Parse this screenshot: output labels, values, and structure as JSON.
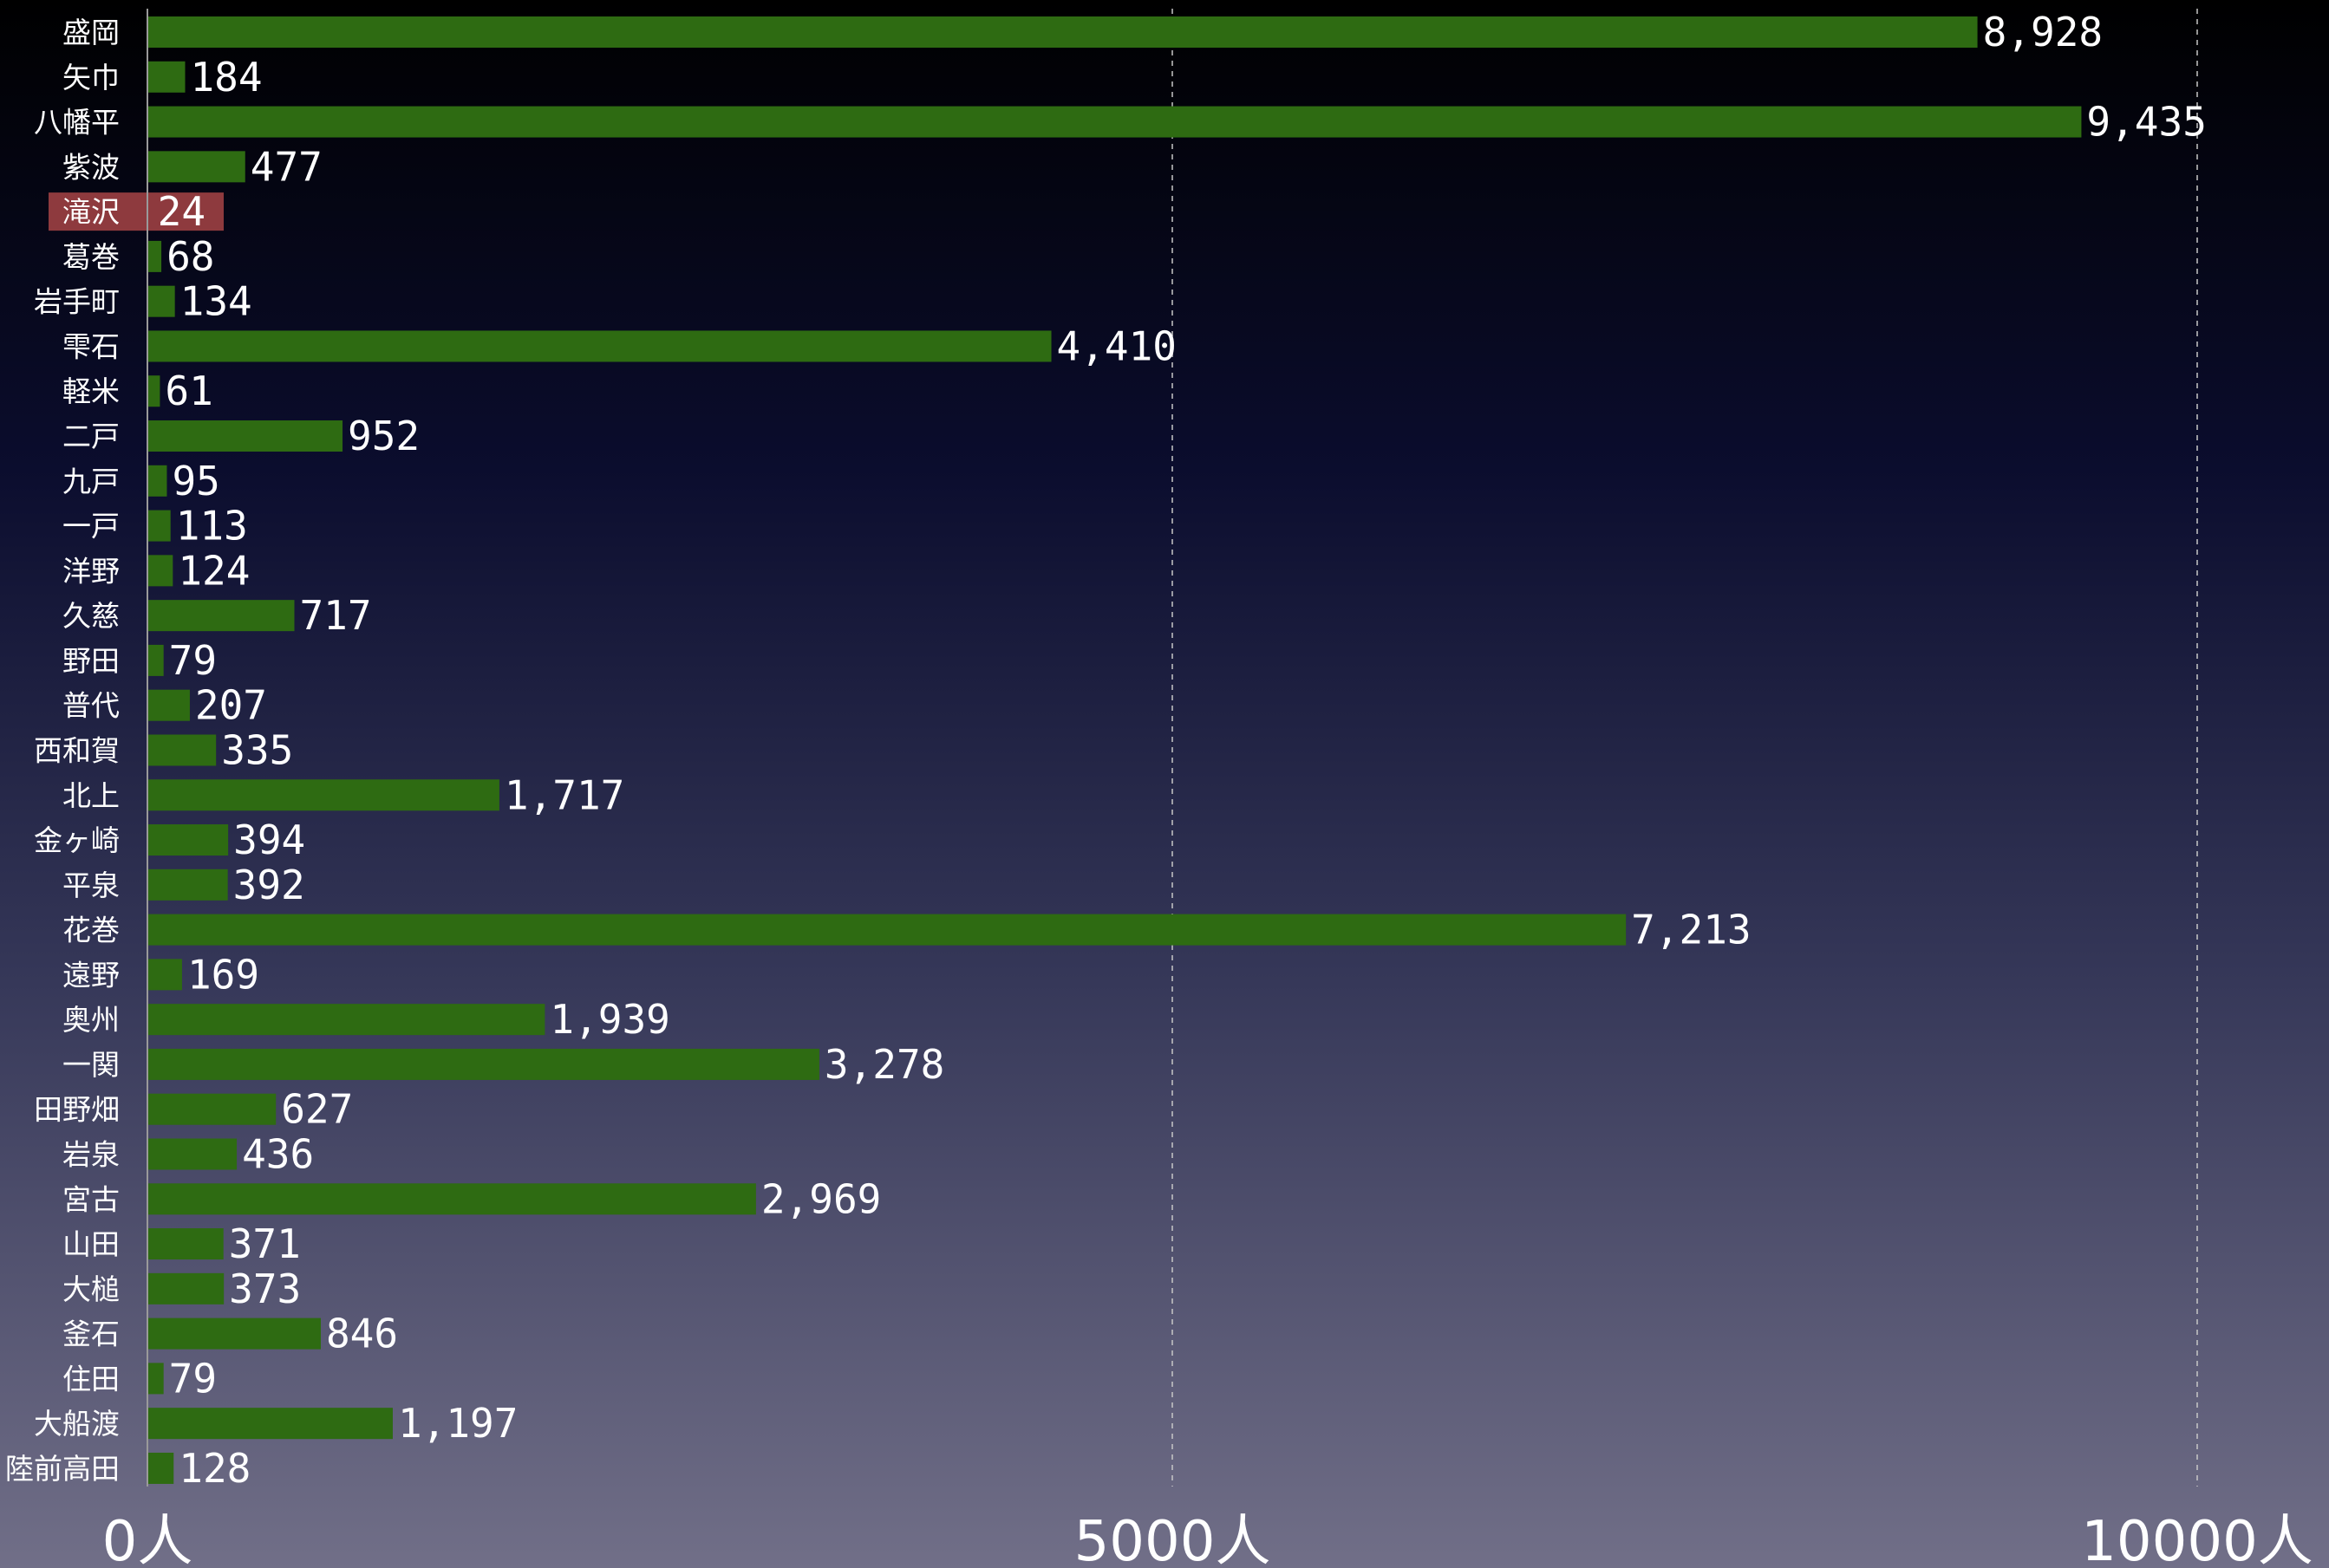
{
  "chart_data": {
    "type": "bar",
    "orientation": "horizontal",
    "categories": [
      "盛岡",
      "矢巾",
      "八幡平",
      "紫波",
      "滝沢",
      "葛巻",
      "岩手町",
      "雫石",
      "軽米",
      "二戸",
      "九戸",
      "一戸",
      "洋野",
      "久慈",
      "野田",
      "普代",
      "西和賀",
      "北上",
      "金ヶ崎",
      "平泉",
      "花巻",
      "遠野",
      "奥州",
      "一関",
      "田野畑",
      "岩泉",
      "宮古",
      "山田",
      "大槌",
      "釜石",
      "住田",
      "大船渡",
      "陸前高田"
    ],
    "values": [
      8928,
      184,
      9435,
      477,
      24,
      68,
      134,
      4410,
      61,
      952,
      95,
      113,
      124,
      717,
      79,
      207,
      335,
      1717,
      394,
      392,
      7213,
      169,
      1939,
      3278,
      627,
      436,
      2969,
      371,
      373,
      846,
      79,
      1197,
      128
    ],
    "value_labels": [
      "8,928",
      "184",
      "9,435",
      "477",
      "24",
      "68",
      "134",
      "4,410",
      "61",
      "952",
      "95",
      "113",
      "124",
      "717",
      "79",
      "207",
      "335",
      "1,717",
      "394",
      "392",
      "7,213",
      "169",
      "1,939",
      "3,278",
      "627",
      "436",
      "2,969",
      "371",
      "373",
      "846",
      "79",
      "1,197",
      "128"
    ],
    "highlighted_category": "滝沢",
    "xlim": [
      0,
      10000
    ],
    "xticks": [
      "0人",
      "5000人",
      "10000人"
    ],
    "xtick_values": [
      0,
      5000,
      10000
    ],
    "grid": "vertical dashed at 5000 and 10000",
    "colors": {
      "bar": "#2e6b12",
      "highlight": "#8e3a3e",
      "text": "#ffffff",
      "grid": "#c8c8c8"
    }
  }
}
